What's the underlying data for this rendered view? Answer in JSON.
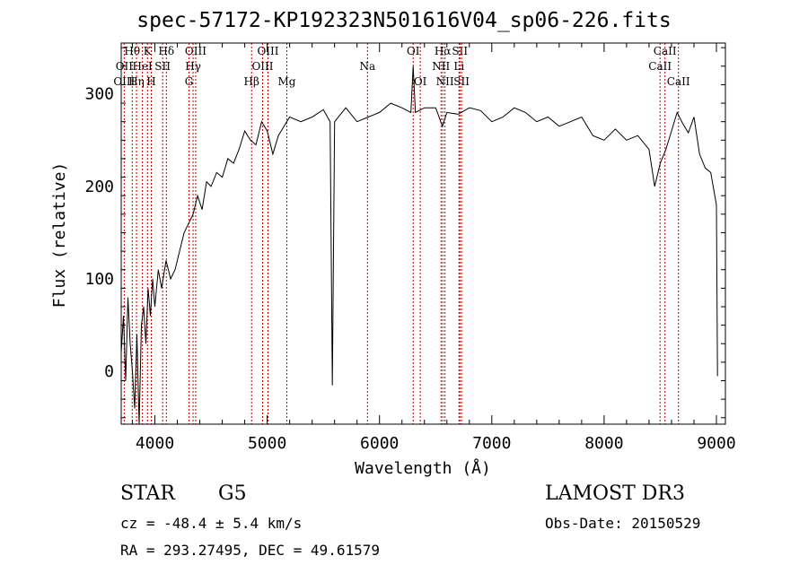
{
  "chart_data": {
    "type": "line",
    "title": "spec-57172-KP192323N501616V04_sp06-226.fits",
    "xlabel": "Wavelength (Å)",
    "ylabel": "Flux (relative)",
    "xlim": [
      3700,
      9080
    ],
    "ylim": [
      -57,
      355
    ],
    "grid": false,
    "xticks": [
      4000,
      5000,
      6000,
      7000,
      8000,
      9000
    ],
    "xtick_labels": [
      "4000",
      "5000",
      "6000",
      "7000",
      "8000",
      "9000"
    ],
    "yticks": [
      0,
      100,
      200,
      300
    ],
    "ytick_labels": [
      "0",
      "100",
      "200",
      "300"
    ],
    "series": [
      {
        "name": "flux",
        "color": "#000000",
        "x": [
          3700,
          3720,
          3740,
          3760,
          3780,
          3800,
          3820,
          3840,
          3860,
          3880,
          3900,
          3920,
          3940,
          3960,
          3980,
          4000,
          4030,
          4060,
          4100,
          4140,
          4180,
          4220,
          4260,
          4300,
          4340,
          4380,
          4420,
          4460,
          4500,
          4550,
          4600,
          4650,
          4700,
          4750,
          4800,
          4850,
          4900,
          4950,
          5000,
          5050,
          5100,
          5150,
          5200,
          5300,
          5400,
          5500,
          5560,
          5580,
          5600,
          5700,
          5800,
          5900,
          6000,
          6100,
          6200,
          6280,
          6300,
          6320,
          6400,
          6500,
          6560,
          6600,
          6700,
          6800,
          6900,
          7000,
          7100,
          7200,
          7300,
          7400,
          7500,
          7600,
          7700,
          7800,
          7900,
          8000,
          8100,
          8200,
          8300,
          8400,
          8450,
          8500,
          8550,
          8600,
          8650,
          8700,
          8750,
          8800,
          8850,
          8900,
          8950,
          9000,
          9010
        ],
        "y": [
          20,
          60,
          -10,
          80,
          30,
          0,
          -40,
          40,
          -60,
          50,
          70,
          30,
          90,
          60,
          100,
          70,
          110,
          90,
          120,
          100,
          110,
          130,
          150,
          160,
          170,
          190,
          175,
          205,
          200,
          215,
          210,
          230,
          225,
          240,
          260,
          250,
          245,
          270,
          260,
          235,
          255,
          265,
          275,
          270,
          275,
          283,
          270,
          -15,
          270,
          285,
          270,
          275,
          280,
          290,
          285,
          280,
          330,
          280,
          285,
          285,
          265,
          280,
          278,
          285,
          282,
          270,
          275,
          285,
          280,
          270,
          275,
          265,
          270,
          275,
          255,
          250,
          262,
          250,
          255,
          240,
          200,
          225,
          240,
          260,
          280,
          268,
          258,
          275,
          235,
          220,
          215,
          180,
          -5
        ]
      }
    ],
    "spectral_lines": [
      {
        "name": "Hθ",
        "wavelength": 3798,
        "row": 1
      },
      {
        "name": "OII",
        "wavelength": 3727,
        "row": 2
      },
      {
        "name": "OIII",
        "wavelength": 3727,
        "row": 3
      },
      {
        "name": "K",
        "wavelength": 3934,
        "row": 1
      },
      {
        "name": "HeI",
        "wavelength": 3889,
        "row": 2
      },
      {
        "name": "Hη",
        "wavelength": 3836,
        "row": 3
      },
      {
        "name": "Hδ",
        "wavelength": 4102,
        "row": 1
      },
      {
        "name": "SII",
        "wavelength": 4069,
        "row": 2
      },
      {
        "name": "H",
        "wavelength": 3968,
        "row": 3
      },
      {
        "name": "OIII",
        "wavelength": 4363,
        "row": 1
      },
      {
        "name": "Hγ",
        "wavelength": 4340,
        "row": 2
      },
      {
        "name": "G",
        "wavelength": 4304,
        "row": 3
      },
      {
        "name": "OIII",
        "wavelength": 5007,
        "row": 1
      },
      {
        "name": "OIII",
        "wavelength": 4959,
        "row": 2
      },
      {
        "name": "Hβ",
        "wavelength": 4861,
        "row": 3
      },
      {
        "name": "Mg",
        "wavelength": 5175,
        "row": 3
      },
      {
        "name": "Na",
        "wavelength": 5893,
        "row": 2
      },
      {
        "name": "OI",
        "wavelength": 6300,
        "row": 1
      },
      {
        "name": "OI",
        "wavelength": 6363,
        "row": 3
      },
      {
        "name": "Hα",
        "wavelength": 6563,
        "row": 1
      },
      {
        "name": "NII",
        "wavelength": 6548,
        "row": 2
      },
      {
        "name": "NII",
        "wavelength": 6583,
        "row": 3
      },
      {
        "name": "SII",
        "wavelength": 6716,
        "row": 1
      },
      {
        "name": "Li",
        "wavelength": 6708,
        "row": 2
      },
      {
        "name": "SII",
        "wavelength": 6731,
        "row": 3
      },
      {
        "name": "CaII",
        "wavelength": 8542,
        "row": 1
      },
      {
        "name": "CaII",
        "wavelength": 8498,
        "row": 2
      },
      {
        "name": "CaII",
        "wavelength": 8662,
        "row": 3
      }
    ]
  },
  "info": {
    "class": "STAR",
    "subclass": "G5",
    "survey": "LAMOST DR3",
    "redshift": "cz = -48.4 ± 5.4 km/s",
    "obs_date": "Obs-Date: 20150529",
    "coords": "RA = 293.27495, DEC =  49.61579"
  },
  "colors": {
    "line_marker": "#c00000",
    "spectrum": "#000000",
    "axis": "#000000"
  }
}
